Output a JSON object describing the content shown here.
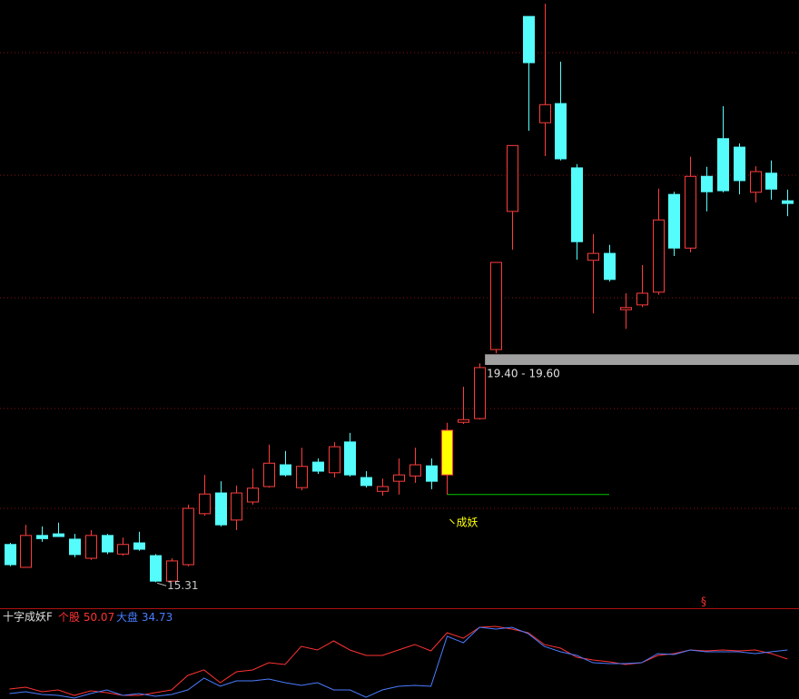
{
  "chart_data": {
    "type": "candlestick",
    "up_color": "#ff3c3c",
    "down_color": "#54fcfc",
    "ylim": [
      14.82,
      26.27
    ],
    "open": [
      16.02,
      15.59,
      16.19,
      16.22,
      16.12,
      15.76,
      16.19,
      15.84,
      16.05,
      15.81,
      15.33,
      15.64,
      16.6,
      16.99,
      16.48,
      16.82,
      17.11,
      17.52,
      17.09,
      17.57,
      17.37,
      17.95,
      17.28,
      17.02,
      17.21,
      17.31,
      17.5,
      17.33,
      18.32,
      18.39,
      19.69,
      22.29,
      25.96,
      23.96,
      24.32,
      23.11,
      21.37,
      21.5,
      20.44,
      20.53,
      20.77,
      22.61,
      21.6,
      22.95,
      23.66,
      23.5,
      22.65,
      23.01,
      22.49
    ],
    "high": [
      16.05,
      16.39,
      16.36,
      16.43,
      16.22,
      16.29,
      16.22,
      16.15,
      16.26,
      15.84,
      15.76,
      16.77,
      17.33,
      17.21,
      17.13,
      17.45,
      17.9,
      17.78,
      17.84,
      17.64,
      17.95,
      18.12,
      17.4,
      17.26,
      17.64,
      17.84,
      17.64,
      18.31,
      18.99,
      19.43,
      21.33,
      23.53,
      25.96,
      26.2,
      25.11,
      23.18,
      21.86,
      21.66,
      20.75,
      21.28,
      22.72,
      22.66,
      23.32,
      23.13,
      24.27,
      23.57,
      23.14,
      23.25,
      22.7
    ],
    "low": [
      15.61,
      15.59,
      16.07,
      16.17,
      15.78,
      15.73,
      15.84,
      15.81,
      15.9,
      15.31,
      15.33,
      15.61,
      16.56,
      16.36,
      16.29,
      16.77,
      17.09,
      17.3,
      17.04,
      17.35,
      17.28,
      17.3,
      17.09,
      16.94,
      16.96,
      17.18,
      17.06,
      16.96,
      18.29,
      18.37,
      19.62,
      21.57,
      23.81,
      23.33,
      23.25,
      21.38,
      20.37,
      20.97,
      20.08,
      20.49,
      20.72,
      21.45,
      21.52,
      22.29,
      22.65,
      22.61,
      22.46,
      22.51,
      22.2
    ],
    "close": [
      15.64,
      16.19,
      16.13,
      16.17,
      15.83,
      16.19,
      15.88,
      16.02,
      15.93,
      15.33,
      15.71,
      16.7,
      16.97,
      16.39,
      16.99,
      17.08,
      17.55,
      17.33,
      17.49,
      17.4,
      17.86,
      17.33,
      17.13,
      17.11,
      17.33,
      17.52,
      17.21,
      18.17,
      18.37,
      19.35,
      21.33,
      23.53,
      25.09,
      24.3,
      23.28,
      21.72,
      21.5,
      21.01,
      20.48,
      20.75,
      22.13,
      21.6,
      22.95,
      22.66,
      22.68,
      22.87,
      23.04,
      22.71,
      22.44
    ],
    "highlight": {
      "index": 27,
      "color": "#ffff00"
    },
    "low_marker": {
      "index": 9,
      "value": 15.31
    },
    "zone": {
      "low": 19.4,
      "high": 19.6,
      "start": 29,
      "label": "19.40 - 19.60",
      "color": "#a0a0a0"
    },
    "support": {
      "value": 16.96,
      "start": 27,
      "end": 37,
      "color": "#00c800"
    },
    "signal": {
      "index": 27,
      "text": "成妖",
      "color": "#ffff00"
    },
    "marker_text": "§",
    "indicator": {
      "title": "十字成妖F",
      "ylim": [
        0,
        100
      ],
      "series": [
        {
          "name": "个股",
          "color": "#ff3232",
          "current": 50.07,
          "values": [
            12.2,
            14.4,
            8.9,
            11.1,
            4.4,
            10,
            7.8,
            4.4,
            4.4,
            7.8,
            11.1,
            28.9,
            35.6,
            20,
            33.3,
            35.6,
            44.4,
            42.2,
            64.4,
            60,
            71.1,
            60,
            53.3,
            53.3,
            60,
            66.7,
            58.9,
            81.1,
            74.4,
            87.8,
            88.9,
            85.6,
            81.1,
            66.7,
            62.2,
            51.1,
            47.8,
            45.6,
            42.2,
            44.4,
            53.3,
            55.6,
            60,
            58.9,
            60,
            58.9,
            60,
            55.6,
            48.9
          ]
        },
        {
          "name": "大盘",
          "color": "#4a7cff",
          "current": 34.73,
          "values": [
            6.7,
            8.9,
            5.6,
            4.4,
            1.1,
            6.7,
            11.1,
            4.4,
            6.7,
            3.3,
            5.6,
            11.1,
            25.6,
            15.6,
            22.2,
            22.2,
            24.4,
            20,
            16.7,
            20,
            11.1,
            11.1,
            2.2,
            11.1,
            15.6,
            16.7,
            15.6,
            76.7,
            68.9,
            87.8,
            85.6,
            87.8,
            80,
            64.4,
            57.8,
            53.3,
            44.4,
            43.3,
            43.3,
            44.4,
            55.6,
            54.4,
            60,
            57.8,
            57.8,
            57.8,
            55.6,
            57.8,
            60
          ]
        }
      ]
    }
  }
}
